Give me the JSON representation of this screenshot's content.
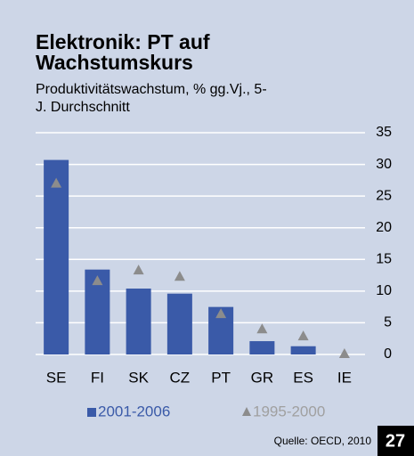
{
  "chart_data": {
    "type": "bar",
    "title": "Elektronik: PT auf Wachstumskurs",
    "subtitle": "Produktivitätswachstum, % gg.Vj., 5-J. Durchschnitt",
    "categories": [
      "SE",
      "FI",
      "SK",
      "CZ",
      "PT",
      "GR",
      "ES",
      "IE"
    ],
    "series": [
      {
        "name": "2001-2006",
        "color": "#3a5aa8",
        "mark": "bar",
        "values": [
          30.7,
          13.4,
          10.4,
          9.6,
          7.5,
          2.1,
          1.3,
          0
        ]
      },
      {
        "name": "1995-2000",
        "color": "#8c8c8c",
        "mark": "triangle",
        "values": [
          26.9,
          11.5,
          13.2,
          12.2,
          6.3,
          3.9,
          2.8,
          0
        ]
      }
    ],
    "ylim": [
      0,
      35
    ],
    "yticks": [
      0,
      5,
      10,
      15,
      20,
      25,
      30,
      35
    ],
    "grid": true,
    "source": "Quelle: OECD, 2010",
    "page_number": "27"
  }
}
